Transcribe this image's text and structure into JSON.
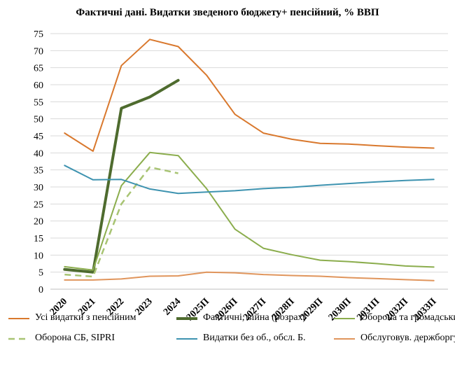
{
  "chart_data": {
    "type": "line",
    "title": "Фактичні дані. Видатки зведеного бюджету+ пенсійний, % ВВП",
    "xlabel": "",
    "ylabel": "",
    "ylim": [
      0,
      75
    ],
    "yticks": [
      0,
      5,
      10,
      15,
      20,
      25,
      30,
      35,
      40,
      45,
      50,
      55,
      60,
      65,
      70,
      75
    ],
    "grid": true,
    "legend_position": "bottom",
    "categories": [
      "2020",
      "2021",
      "2022",
      "2023",
      "2024",
      "2025П",
      "2026П",
      "2027П",
      "2028П",
      "2029П",
      "2030П",
      "2031П",
      "2032П",
      "2033П"
    ],
    "series": [
      {
        "name": "Усі видатки з пенсійним",
        "color": "#D9782D",
        "dash": "solid",
        "width": 2,
        "values": [
          45.8,
          40.5,
          65.6,
          73.3,
          71.2,
          62.8,
          51.3,
          45.8,
          44.0,
          42.8,
          42.6,
          42.1,
          41.7,
          41.4
        ]
      },
      {
        "name": "Фактичні, війна (розрах)",
        "color": "#4E6B2E",
        "dash": "solid",
        "width": 4,
        "values": [
          5.8,
          5.0,
          53.1,
          56.4,
          61.3,
          null,
          null,
          null,
          null,
          null,
          null,
          null,
          null,
          null
        ]
      },
      {
        "name": "Оборона та громадський",
        "color": "#8BAD4D",
        "dash": "solid",
        "width": 2,
        "values": [
          6.6,
          5.6,
          30.4,
          40.1,
          39.2,
          29.5,
          17.6,
          12.0,
          10.1,
          8.5,
          8.1,
          7.5,
          6.8,
          6.5
        ]
      },
      {
        "name": "Оборона СБ, SIPRI",
        "color": "#A8C473",
        "dash": "dashed",
        "width": 2.5,
        "values": [
          4.3,
          3.7,
          25.0,
          35.8,
          34.0,
          null,
          null,
          null,
          null,
          null,
          null,
          null,
          null,
          null
        ]
      },
      {
        "name": "Видатки без об., обсл. Б.",
        "color": "#3E93B0",
        "dash": "solid",
        "width": 2,
        "values": [
          36.3,
          32.1,
          32.2,
          29.4,
          28.1,
          28.5,
          28.9,
          29.5,
          29.9,
          30.5,
          31.0,
          31.5,
          31.9,
          32.2
        ]
      },
      {
        "name": "Обслуговув. держборгу",
        "color": "#E0955C",
        "dash": "solid",
        "width": 2,
        "values": [
          2.7,
          2.7,
          3.0,
          3.8,
          3.9,
          5.0,
          4.8,
          4.3,
          4.0,
          3.8,
          3.4,
          3.1,
          2.8,
          2.5
        ]
      }
    ]
  }
}
